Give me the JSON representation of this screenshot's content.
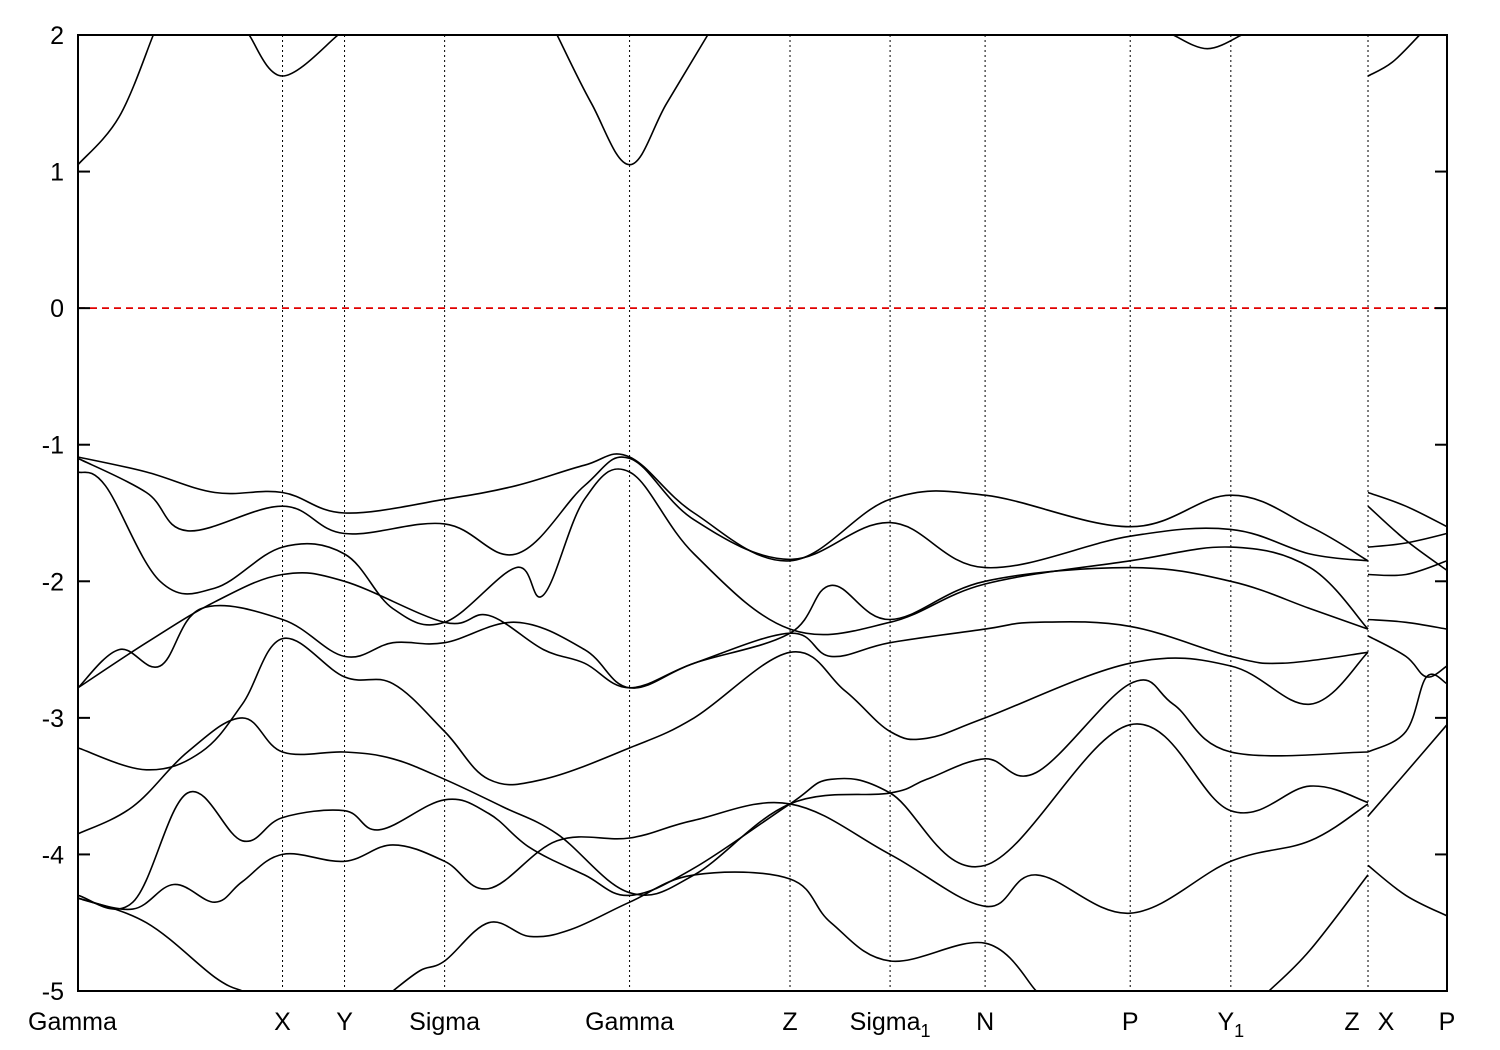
{
  "chart_data": {
    "type": "line",
    "title": "",
    "xlabel": "",
    "ylabel": "",
    "ylim": [
      -5,
      2
    ],
    "yticks": [
      -5,
      -4,
      -3,
      -2,
      -1,
      0,
      1,
      2
    ],
    "grid": "vertical dotted lines at high-symmetry points",
    "high_symmetry_points": [
      {
        "label": "Gamma",
        "sub": "",
        "x": 0.0
      },
      {
        "label": "X",
        "sub": "",
        "x": 0.1494
      },
      {
        "label": "Y",
        "sub": "",
        "x": 0.1947
      },
      {
        "label": "Sigma",
        "sub": "",
        "x": 0.2678
      },
      {
        "label": "Gamma",
        "sub": "",
        "x": 0.4029
      },
      {
        "label": "Z",
        "sub": "",
        "x": 0.5201
      },
      {
        "label": "Sigma",
        "sub": "1",
        "x": 0.5932
      },
      {
        "label": "N",
        "sub": "",
        "x": 0.6626
      },
      {
        "label": "P",
        "sub": "",
        "x": 0.7686
      },
      {
        "label": "Y",
        "sub": "1",
        "x": 0.8421
      },
      {
        "label": "Z",
        "sub": "",
        "x": 0.9423
      },
      {
        "label": "X",
        "sub": "",
        "x": 0.9423
      },
      {
        "label": "P",
        "sub": "",
        "x": 1.0
      }
    ],
    "fermi_level": {
      "y": 0,
      "color": "#e00000",
      "style": "dashed"
    },
    "line_color": "#000000",
    "series": [
      {
        "name": "",
        "x": [
          0.0,
          0.05,
          0.1,
          0.1494,
          0.1947,
          0.2678,
          0.32,
          0.37,
          0.4029,
          0.45,
          0.5201,
          0.5932,
          0.6626,
          0.7686,
          0.8421,
          0.9,
          0.9423
        ],
        "y": [
          -1.09,
          -1.2,
          -1.35,
          -1.35,
          -1.5,
          -1.4,
          -1.3,
          -1.15,
          -1.09,
          -1.5,
          -1.85,
          -1.4,
          -1.37,
          -1.6,
          -1.37,
          -1.6,
          -1.85
        ]
      },
      {
        "name": "",
        "x": [
          0.0,
          0.05,
          0.08,
          0.1494,
          0.1947,
          0.2678,
          0.32,
          0.37,
          0.4029,
          0.45,
          0.5201,
          0.5932,
          0.6626,
          0.7686,
          0.8421,
          0.9,
          0.9423
        ],
        "y": [
          -1.1,
          -1.35,
          -1.63,
          -1.45,
          -1.65,
          -1.58,
          -1.8,
          -1.3,
          -1.1,
          -1.55,
          -1.84,
          -1.57,
          -1.9,
          -1.67,
          -1.62,
          -1.8,
          -1.85
        ]
      },
      {
        "name": "",
        "x": [
          0.0,
          0.02,
          0.06,
          0.1,
          0.1494,
          0.1947,
          0.23,
          0.2678,
          0.32,
          0.34,
          0.37,
          0.4029,
          0.45,
          0.5201,
          0.5932,
          0.6626,
          0.7686,
          0.8421,
          0.9,
          0.9423
        ],
        "y": [
          -1.2,
          -1.3,
          -2.0,
          -2.05,
          -1.75,
          -1.8,
          -2.2,
          -2.3,
          -1.9,
          -2.1,
          -1.4,
          -1.2,
          -1.8,
          -2.35,
          -2.3,
          -2.02,
          -1.85,
          -1.75,
          -1.9,
          -2.35
        ]
      },
      {
        "name": "",
        "x": [
          0.0,
          0.05,
          0.1,
          0.1494,
          0.1947,
          0.2678,
          0.3,
          0.34,
          0.37,
          0.4029,
          0.45,
          0.5201,
          0.55,
          0.5932,
          0.6626,
          0.7686,
          0.8421,
          0.9,
          0.9423
        ],
        "y": [
          -2.78,
          -2.45,
          -2.15,
          -1.95,
          -2.0,
          -2.3,
          -2.25,
          -2.5,
          -2.6,
          -2.78,
          -2.6,
          -2.38,
          -2.03,
          -2.28,
          -2.0,
          -1.9,
          -2.0,
          -2.2,
          -2.35
        ]
      },
      {
        "name": "",
        "x": [
          0.0,
          0.03,
          0.06,
          0.09,
          0.1494,
          0.1947,
          0.23,
          0.2678,
          0.32,
          0.37,
          0.4029,
          0.45,
          0.5201,
          0.55,
          0.5932,
          0.6626,
          0.7,
          0.7686,
          0.8421,
          0.88,
          0.9423
        ],
        "y": [
          -2.78,
          -2.5,
          -2.62,
          -2.2,
          -2.28,
          -2.55,
          -2.45,
          -2.45,
          -2.3,
          -2.5,
          -2.78,
          -2.6,
          -2.38,
          -2.55,
          -2.45,
          -2.35,
          -2.3,
          -2.33,
          -2.55,
          -2.6,
          -2.52
        ]
      },
      {
        "name": "",
        "x": [
          0.0,
          0.05,
          0.09,
          0.12,
          0.1494,
          0.1947,
          0.23,
          0.2678,
          0.3,
          0.34,
          0.4029,
          0.45,
          0.5201,
          0.56,
          0.5932,
          0.62,
          0.6626,
          0.7686,
          0.8421,
          0.9,
          0.9423
        ],
        "y": [
          -3.22,
          -3.38,
          -3.25,
          -2.9,
          -2.42,
          -2.7,
          -2.75,
          -3.1,
          -3.45,
          -3.45,
          -3.22,
          -3.0,
          -2.52,
          -2.8,
          -3.1,
          -3.15,
          -3.0,
          -2.6,
          -2.62,
          -2.9,
          -2.52
        ]
      },
      {
        "name": "",
        "x": [
          0.0,
          0.04,
          0.08,
          0.12,
          0.1494,
          0.1947,
          0.23,
          0.2678,
          0.31,
          0.35,
          0.4029,
          0.45,
          0.5201,
          0.5932,
          0.62,
          0.6626,
          0.7,
          0.7686,
          0.8,
          0.8421,
          0.9423
        ],
        "y": [
          -3.85,
          -3.65,
          -3.25,
          -3.0,
          -3.25,
          -3.25,
          -3.3,
          -3.45,
          -3.65,
          -3.85,
          -4.28,
          -4.15,
          -3.63,
          -3.55,
          -3.45,
          -3.3,
          -3.4,
          -2.75,
          -2.9,
          -3.25,
          -3.25
        ]
      },
      {
        "name": "",
        "x": [
          0.0,
          0.04,
          0.08,
          0.12,
          0.1494,
          0.1947,
          0.22,
          0.2678,
          0.3,
          0.33,
          0.37,
          0.4029,
          0.45,
          0.5201,
          0.55,
          0.5932,
          0.6626,
          0.7686,
          0.8421,
          0.9,
          0.9423
        ],
        "y": [
          -4.3,
          -4.35,
          -3.55,
          -3.9,
          -3.73,
          -3.68,
          -3.82,
          -3.6,
          -3.7,
          -3.95,
          -4.15,
          -4.3,
          -4.1,
          -3.63,
          -3.45,
          -3.55,
          -4.08,
          -3.05,
          -3.68,
          -3.5,
          -3.62
        ]
      },
      {
        "name": "",
        "x": [
          0.0,
          0.04,
          0.07,
          0.1,
          0.12,
          0.1494,
          0.1947,
          0.23,
          0.2678,
          0.3,
          0.35,
          0.4029,
          0.45,
          0.5201,
          0.5932,
          0.6626,
          0.7,
          0.7686,
          0.8421,
          0.9,
          0.9423
        ],
        "y": [
          -4.32,
          -4.4,
          -4.22,
          -4.35,
          -4.2,
          -4.0,
          -4.05,
          -3.93,
          -4.05,
          -4.25,
          -3.9,
          -3.88,
          -3.75,
          -3.63,
          -4.0,
          -4.38,
          -4.15,
          -4.43,
          -4.05,
          -3.9,
          -3.63
        ]
      },
      {
        "name": "",
        "x": [
          0.0,
          0.05,
          0.1,
          0.12
        ],
        "y": [
          -4.32,
          -4.5,
          -4.9,
          -5.05
        ]
      },
      {
        "name": "",
        "x": [
          0.23,
          0.25,
          0.2678,
          0.3,
          0.33,
          0.36,
          0.4029,
          0.45,
          0.5201,
          0.55,
          0.5932,
          0.6626,
          0.7
        ],
        "y": [
          -5.05,
          -4.85,
          -4.78,
          -4.5,
          -4.6,
          -4.55,
          -4.35,
          -4.15,
          -4.18,
          -4.5,
          -4.78,
          -4.65,
          -5.05
        ]
      },
      {
        "name": "",
        "x": [
          0.87,
          0.9,
          0.9423
        ],
        "y": [
          -5.05,
          -4.7,
          -4.15
        ]
      },
      {
        "name": "",
        "x": [
          0.0,
          0.03,
          0.055
        ],
        "y": [
          1.05,
          1.4,
          2.02
        ]
      },
      {
        "name": "",
        "x": [
          0.125,
          0.1494,
          0.19
        ],
        "y": [
          2.02,
          1.7,
          2.02
        ]
      },
      {
        "name": "",
        "x": [
          0.35,
          0.375,
          0.4029,
          0.43,
          0.46
        ],
        "y": [
          2.02,
          1.5,
          1.05,
          1.5,
          2.02
        ]
      },
      {
        "name": "",
        "x": [
          0.8,
          0.825,
          0.85
        ],
        "y": [
          2.02,
          1.9,
          2.02
        ]
      },
      {
        "name": "",
        "x": [
          0.9423,
          0.96,
          0.98
        ],
        "y": [
          1.7,
          1.8,
          2.02
        ]
      },
      {
        "name": "",
        "x": [
          0.9423,
          0.97,
          1.0
        ],
        "y": [
          -1.35,
          -1.45,
          -1.6
        ]
      },
      {
        "name": "",
        "x": [
          0.9423,
          0.97,
          1.0
        ],
        "y": [
          -1.45,
          -1.7,
          -1.92
        ]
      },
      {
        "name": "",
        "x": [
          0.9423,
          0.97,
          1.0
        ],
        "y": [
          -1.75,
          -1.72,
          -1.65
        ]
      },
      {
        "name": "",
        "x": [
          0.9423,
          0.97,
          1.0
        ],
        "y": [
          -1.95,
          -1.95,
          -1.85
        ]
      },
      {
        "name": "",
        "x": [
          0.9423,
          0.97,
          1.0
        ],
        "y": [
          -2.28,
          -2.3,
          -2.35
        ]
      },
      {
        "name": "",
        "x": [
          0.9423,
          0.97,
          0.985,
          1.0
        ],
        "y": [
          -2.4,
          -2.55,
          -2.7,
          -2.62
        ]
      },
      {
        "name": "",
        "x": [
          0.9423,
          0.97,
          0.985,
          1.0
        ],
        "y": [
          -3.25,
          -3.1,
          -2.7,
          -2.75
        ]
      },
      {
        "name": "",
        "x": [
          0.9423,
          0.97,
          1.0
        ],
        "y": [
          -3.72,
          -3.4,
          -3.05
        ]
      },
      {
        "name": "",
        "x": [
          0.9423,
          0.97,
          1.0
        ],
        "y": [
          -4.08,
          -4.3,
          -4.45
        ]
      }
    ]
  }
}
